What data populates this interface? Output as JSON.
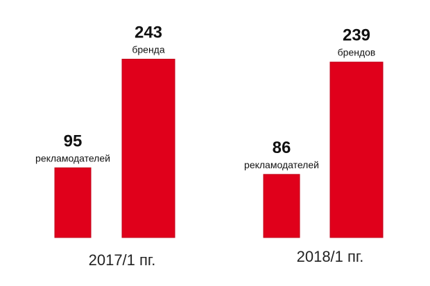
{
  "chart_data": {
    "type": "bar",
    "categories": [
      "2017/1 пг.",
      "2018/1 пг."
    ],
    "series": [
      {
        "values": [
          95,
          86
        ],
        "labels": [
          "рекламодателей",
          "рекламодателей"
        ]
      },
      {
        "values": [
          243,
          239
        ],
        "labels": [
          "бренда",
          "брендов"
        ]
      }
    ],
    "ylim": [
      0,
      260
    ],
    "grid": false,
    "legend": "none",
    "bar_color": "#e0001b",
    "bar_edge_color": "#c00018"
  }
}
